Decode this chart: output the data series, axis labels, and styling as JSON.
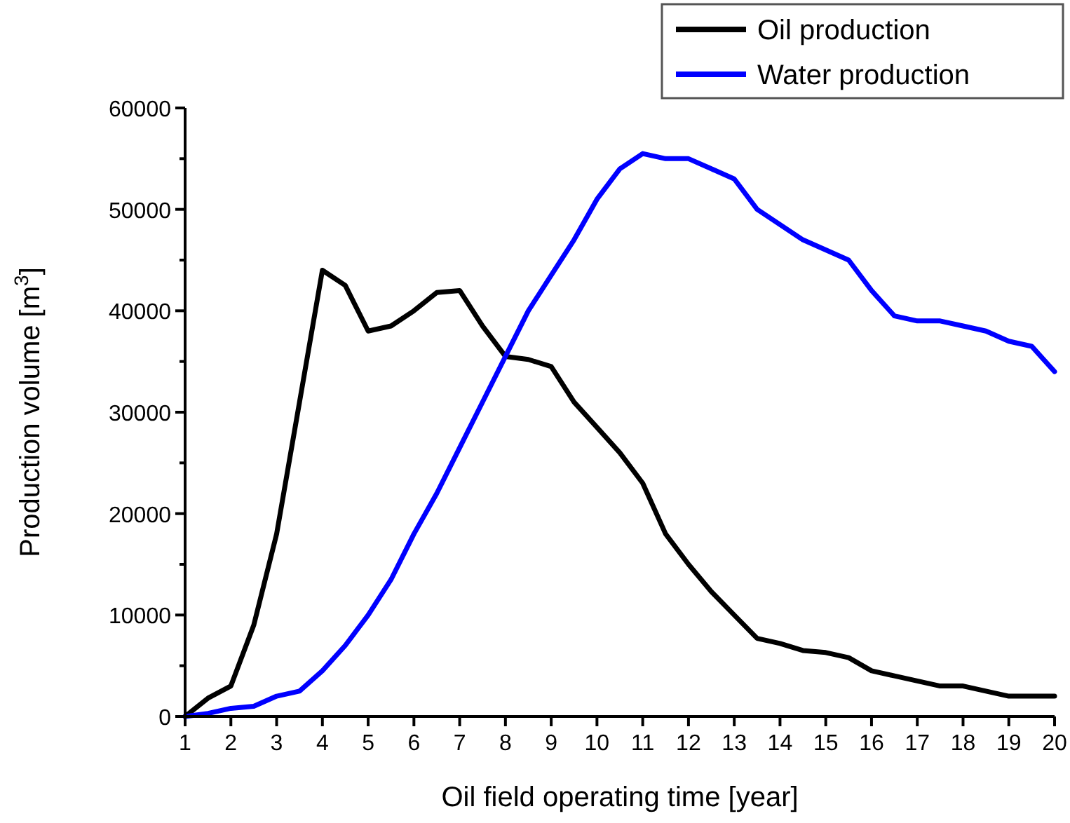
{
  "chart_data": {
    "type": "line",
    "xlabel": "Oil field operating time [year]",
    "ylabel": "Production volume [m$^{3}$]",
    "x": [
      1,
      1.5,
      2,
      2.5,
      3,
      3.5,
      4,
      4.5,
      5,
      5.5,
      6,
      6.5,
      7,
      7.5,
      8,
      8.5,
      9,
      9.5,
      10,
      10.5,
      11,
      11.5,
      12,
      12.5,
      13,
      13.5,
      14,
      14.5,
      15,
      15.5,
      16,
      16.5,
      17,
      17.5,
      18,
      18.5,
      19,
      19.5,
      20
    ],
    "series": [
      {
        "name": "Oil production",
        "color": "#000000",
        "values": [
          0,
          1800,
          3000,
          9000,
          18000,
          31000,
          44000,
          42500,
          38000,
          38500,
          40000,
          41800,
          42000,
          38500,
          35500,
          35200,
          34500,
          31000,
          28500,
          26000,
          23000,
          18000,
          15000,
          12300,
          10000,
          7700,
          7200,
          6500,
          6300,
          5800,
          4500,
          4000,
          3500,
          3000,
          3000,
          2500,
          2000,
          2000,
          2000
        ]
      },
      {
        "name": "Water production",
        "color": "#0000ff",
        "values": [
          0,
          300,
          800,
          1000,
          2000,
          2500,
          4500,
          7000,
          10000,
          13500,
          18000,
          22000,
          26500,
          31000,
          35500,
          40000,
          43500,
          47000,
          51000,
          54000,
          55500,
          55000,
          55000,
          54000,
          53000,
          50000,
          48500,
          47000,
          46000,
          45000,
          42000,
          39500,
          39000,
          39000,
          38500,
          38000,
          37000,
          36500,
          34000
        ]
      }
    ],
    "xlim": [
      1,
      20
    ],
    "xticks": [
      1,
      2,
      3,
      4,
      5,
      6,
      7,
      8,
      9,
      10,
      11,
      12,
      13,
      14,
      15,
      16,
      17,
      18,
      19,
      20
    ],
    "ylim": [
      0,
      60000
    ],
    "yticks": [
      0,
      {
        "value": 5000,
        "label": null
      },
      10000,
      {
        "value": 15000,
        "label": null
      },
      20000,
      {
        "value": 25000,
        "label": null
      },
      30000,
      {
        "value": 35000,
        "label": null
      },
      40000,
      {
        "value": 45000,
        "label": null
      },
      50000,
      {
        "value": 55000,
        "label": null
      },
      60000
    ],
    "grid": false,
    "legend": "top right",
    "marker": "none",
    "line_style": "solid"
  }
}
